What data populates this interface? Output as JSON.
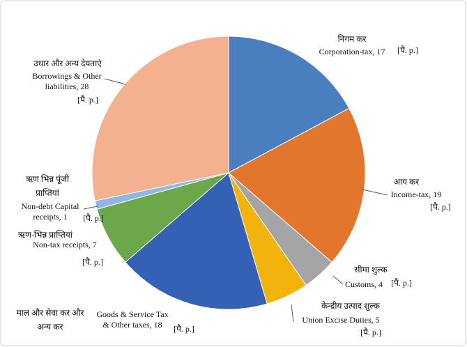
{
  "chart_data": {
    "type": "pie",
    "labels_hindi": [
      [
        "निगम कर"
      ],
      [
        "आय कर"
      ],
      [
        "सीमा शुल्क"
      ],
      [
        "केन्द्रीय उत्पाद शुल्क"
      ],
      [
        "माल और सेवा कर और",
        "अन्य कर"
      ],
      [
        "ऋण-भिन्न प्राप्तियां"
      ],
      [
        "ऋण भिन्न पूंजी",
        "प्राप्तियां"
      ],
      [
        "उधार और अन्य देयताएं"
      ]
    ],
    "values": [
      17,
      19,
      4,
      5,
      18,
      7,
      1,
      28
    ],
    "value_labels": [
      [
        "Corporation-tax, 17"
      ],
      [
        "Income-tax, 19"
      ],
      [
        "Customs, 4"
      ],
      [
        "Union Excise Duties, 5"
      ],
      [
        "Goods & Service Tax",
        "& Other taxes, 18"
      ],
      [
        "Non-tax receipts, 7"
      ],
      [
        "Non-debt Capital",
        "receipts, 1"
      ],
      [
        "Borrowings & Other",
        "liabilities, 28"
      ]
    ],
    "source_note": "[पै. p.]",
    "colors": [
      "#4a7fbf",
      "#e2762c",
      "#a5a5a5",
      "#f2b40a",
      "#3461b3",
      "#6aa84a",
      "#8fb6e6",
      "#f4b18f"
    ]
  }
}
